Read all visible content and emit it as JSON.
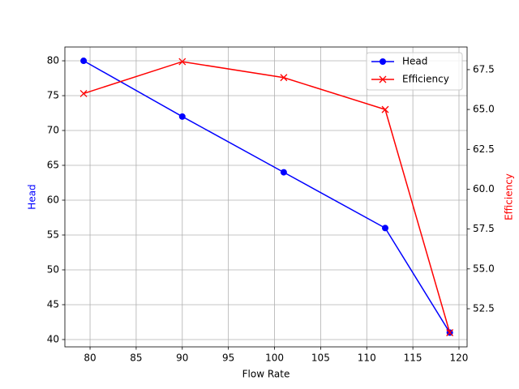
{
  "chart_data": {
    "type": "line",
    "x_label": "Flow Rate",
    "y_label": "Head",
    "y2_label": "Efficiency",
    "x": [
      79.3,
      90,
      101,
      112,
      119
    ],
    "series": [
      {
        "name": "Head",
        "color": "#0000ff",
        "marker": "circle",
        "values": [
          80,
          72,
          64,
          56,
          41
        ]
      },
      {
        "name": "Efficiency",
        "color": "#ff0000",
        "marker": "x",
        "axis": "y2",
        "values": [
          66,
          68,
          67,
          65,
          51
        ]
      }
    ],
    "xlim": [
      77.27,
      120.88
    ],
    "xticks": [
      80,
      85,
      90,
      95,
      100,
      105,
      110,
      115,
      120
    ],
    "ylim": [
      38.95,
      81.98
    ],
    "yticks": [
      40,
      45,
      50,
      55,
      60,
      65,
      70,
      75,
      80
    ],
    "y2lim": [
      50.11,
      68.92
    ],
    "y2ticks": [
      52.5,
      {
        "value": 55,
        "label": "55.0"
      },
      57.5,
      {
        "value": 60,
        "label": "60.0"
      },
      62.5,
      {
        "value": 65,
        "label": "65.0"
      },
      67.5
    ],
    "grid": true,
    "legend": "upper right"
  }
}
